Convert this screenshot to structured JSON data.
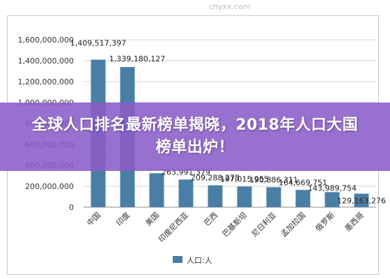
{
  "banner": {
    "headline": "全球人口排名最新榜单揭晓，2018年人口大国榜单出炉！"
  },
  "watermark": "chyxx.com",
  "chart_data": {
    "type": "bar",
    "categories": [
      "中国",
      "印度",
      "美国",
      "印度尼西亚",
      "巴西",
      "巴基斯坦",
      "尼日利亚",
      "孟加拉国",
      "俄罗斯",
      "墨西哥"
    ],
    "series": [
      {
        "name": "人口:人",
        "values": [
          1409517397,
          1339180127,
          324459463,
          263991379,
          209288278,
          197015955,
          190886311,
          164669751,
          143989754,
          129163276
        ],
        "labels": [
          "1,409,517,397",
          "1,339,180,127",
          "",
          "263,991,379",
          "209,288,278",
          "197,015,955",
          "190,886,311",
          "164,669,751",
          "143,989,754",
          "129,163,276"
        ]
      }
    ],
    "yticks": [
      {
        "value": 0,
        "label": "0"
      },
      {
        "value": 200000000,
        "label": "200,000,000"
      },
      {
        "value": 400000000,
        "label": "400,000,000"
      },
      {
        "value": 600000000,
        "label": "600,000,000"
      },
      {
        "value": 800000000,
        "label": "800,000,000"
      },
      {
        "value": 1000000000,
        "label": "1,000,000,000"
      },
      {
        "value": 1200000000,
        "label": "1,200,000,000"
      },
      {
        "value": 1400000000,
        "label": "1,400,000,000"
      },
      {
        "value": 1600000000,
        "label": "1,600,000,000"
      }
    ],
    "ylim": [
      0,
      1600000000
    ],
    "grid": true,
    "legend": "bottom",
    "bar_color": "#4a7fa5"
  }
}
